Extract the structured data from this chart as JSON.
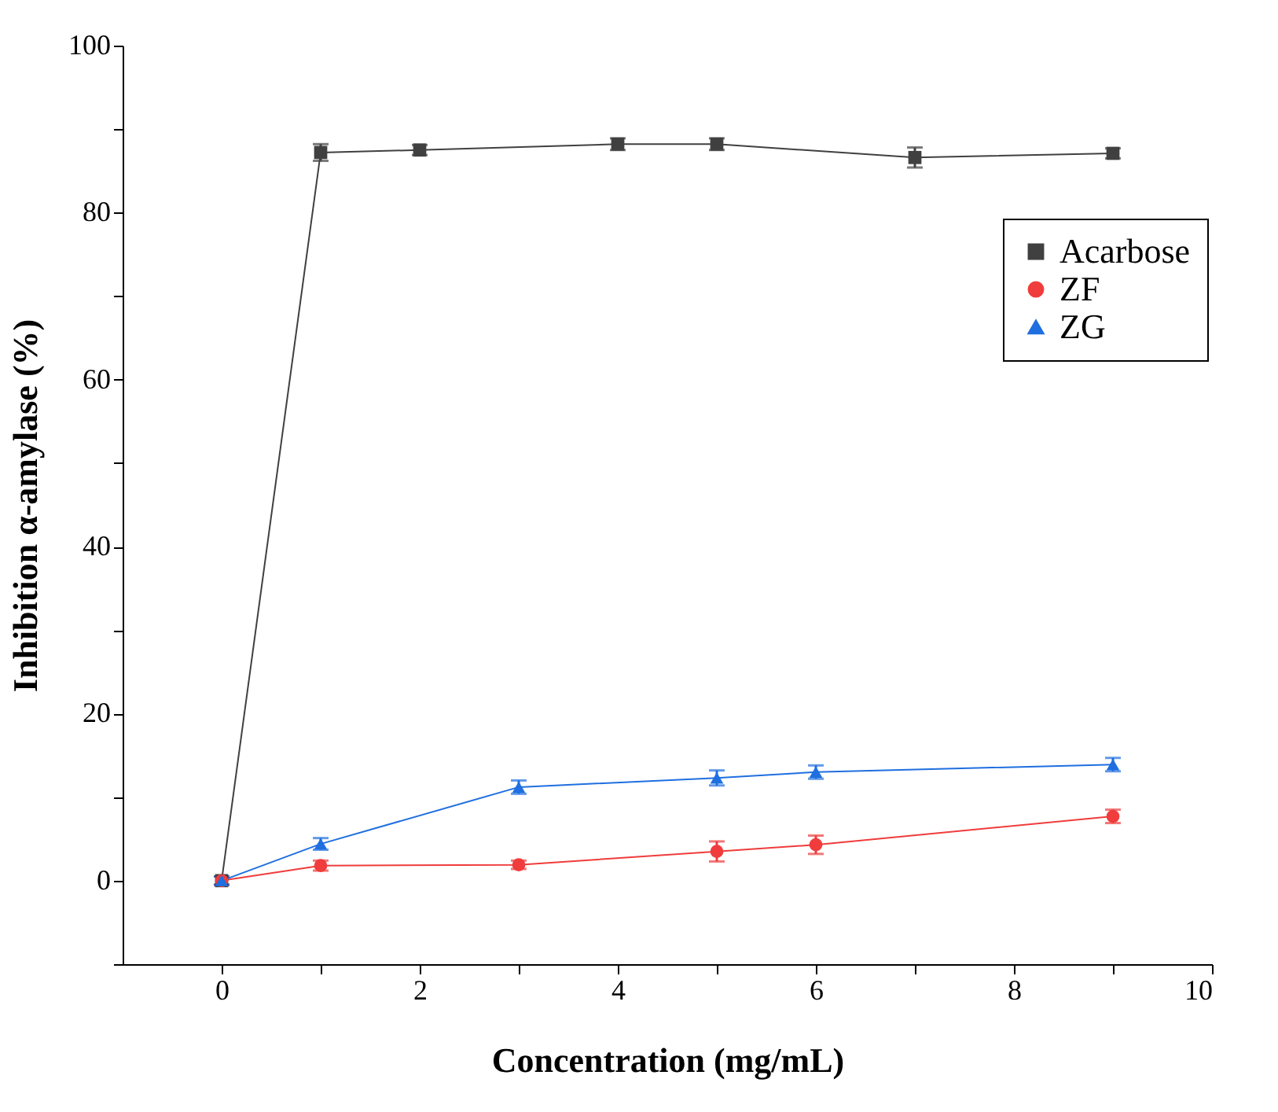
{
  "chart_data": {
    "type": "line",
    "xlabel": "Concentration (mg/mL)",
    "ylabel": "Inhibition α-amylase (%)",
    "xlim": [
      -1,
      10
    ],
    "xticks": [
      0,
      {
        "value": 1,
        "label": null
      },
      2,
      {
        "value": 3,
        "label": null
      },
      4,
      {
        "value": 5,
        "label": null
      },
      6,
      {
        "value": 7,
        "label": null
      },
      8,
      {
        "value": 9,
        "label": null
      },
      10
    ],
    "ylim": [
      -10,
      100
    ],
    "yticks": [
      {
        "value": -10,
        "label": null
      },
      0,
      {
        "value": 10,
        "label": null
      },
      20,
      {
        "value": 30,
        "label": null
      },
      40,
      {
        "value": 50,
        "label": null
      },
      60,
      {
        "value": 70,
        "label": null
      },
      80,
      {
        "value": 90,
        "label": null
      },
      100
    ],
    "grid": false,
    "legend": "top right",
    "line_style": "solid",
    "series": [
      {
        "name": "Acarbose",
        "color": "#404040",
        "marker": "square",
        "x": [
          0,
          1,
          2,
          4,
          5,
          7,
          9
        ],
        "values": [
          0,
          87.2,
          87.5,
          88.2,
          88.2,
          86.6,
          87.1
        ],
        "errors": [
          0.5,
          1.0,
          0.6,
          0.7,
          0.7,
          1.2,
          0.6
        ]
      },
      {
        "name": "ZF",
        "color": "#f03c3c",
        "marker": "circle",
        "x": [
          0,
          1,
          3,
          5,
          6,
          9
        ],
        "values": [
          0,
          1.8,
          1.9,
          3.5,
          4.3,
          7.7
        ],
        "errors": [
          0.5,
          0.6,
          0.5,
          1.2,
          1.1,
          0.8
        ]
      },
      {
        "name": "ZG",
        "color": "#1f6fe0",
        "marker": "triangle",
        "x": [
          0,
          1,
          3,
          5,
          6,
          9
        ],
        "values": [
          0,
          4.4,
          11.2,
          12.3,
          13.0,
          13.9
        ],
        "errors": [
          0.5,
          0.7,
          0.8,
          0.9,
          0.8,
          0.8
        ]
      }
    ]
  }
}
